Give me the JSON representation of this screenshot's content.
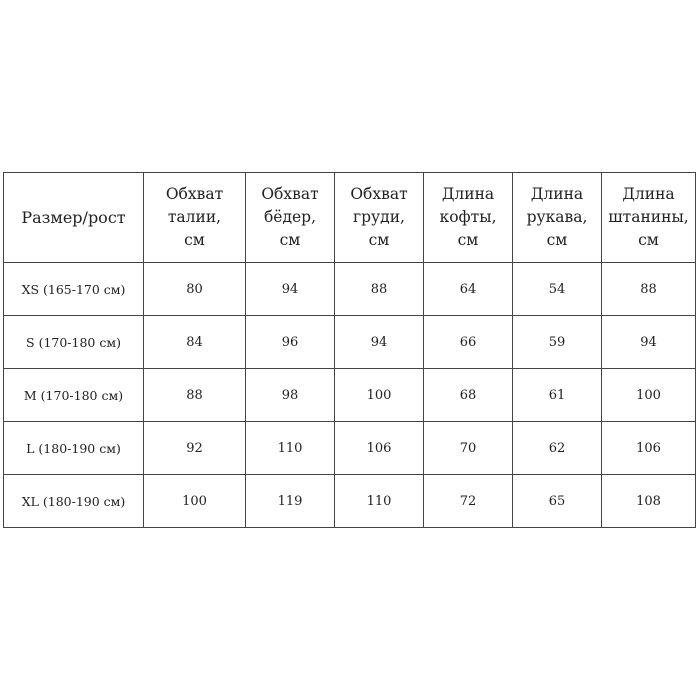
{
  "table": {
    "headers": [
      [
        "Размер/рост"
      ],
      [
        "Обхват",
        "талии,",
        "см"
      ],
      [
        "Обхват",
        "бёдер,",
        "см"
      ],
      [
        "Обхват",
        "груди,",
        "см"
      ],
      [
        "Длина",
        "кофты,",
        "см"
      ],
      [
        "Длина",
        "рукава,",
        "см"
      ],
      [
        "Длина",
        "штанины,",
        "см"
      ]
    ],
    "rows": [
      [
        "XS (165-170 см)",
        "80",
        "94",
        "88",
        "64",
        "54",
        "88"
      ],
      [
        "S (170-180 см)",
        "84",
        "96",
        "94",
        "66",
        "59",
        "94"
      ],
      [
        "M (170-180 см)",
        "88",
        "98",
        "100",
        "68",
        "61",
        "100"
      ],
      [
        "L (180-190 см)",
        "92",
        "110",
        "106",
        "70",
        "62",
        "106"
      ],
      [
        "XL (180-190 см)",
        "100",
        "119",
        "110",
        "72",
        "65",
        "108"
      ]
    ]
  }
}
